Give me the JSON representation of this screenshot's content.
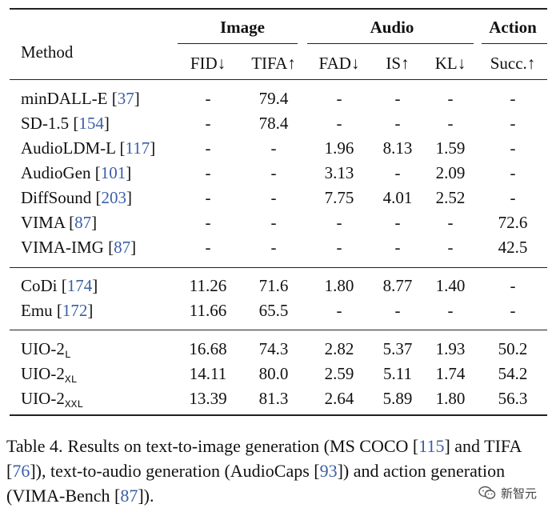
{
  "table": {
    "headers": {
      "method": "Method",
      "groups": {
        "image": "Image",
        "audio": "Audio",
        "action": "Action"
      },
      "cols": {
        "fid": "FID↓",
        "tifa": "TIFA↑",
        "fad": "FAD↓",
        "is": "IS↑",
        "kl": "KL↓",
        "succ": "Succ.↑"
      }
    },
    "rows": [
      {
        "name": "minDALL-E",
        "ref": "37",
        "fid": "-",
        "tifa": "79.4",
        "fad": "-",
        "is": "-",
        "kl": "-",
        "succ": "-"
      },
      {
        "name": "SD-1.5",
        "ref": "154",
        "fid": "-",
        "tifa": "78.4",
        "fad": "-",
        "is": "-",
        "kl": "-",
        "succ": "-"
      },
      {
        "name": "AudioLDM-L",
        "ref": "117",
        "fid": "-",
        "tifa": "-",
        "fad": "1.96",
        "is": "8.13",
        "kl": "1.59",
        "succ": "-"
      },
      {
        "name": "AudioGen",
        "ref": "101",
        "fid": "-",
        "tifa": "-",
        "fad": "3.13",
        "is": "-",
        "kl": "2.09",
        "succ": "-"
      },
      {
        "name": "DiffSound",
        "ref": "203",
        "fid": "-",
        "tifa": "-",
        "fad": "7.75",
        "is": "4.01",
        "kl": "2.52",
        "succ": "-"
      },
      {
        "name": "VIMA",
        "ref": "87",
        "fid": "-",
        "tifa": "-",
        "fad": "-",
        "is": "-",
        "kl": "-",
        "succ": "72.6"
      },
      {
        "name": "VIMA-IMG",
        "ref": "87",
        "fid": "-",
        "tifa": "-",
        "fad": "-",
        "is": "-",
        "kl": "-",
        "succ": "42.5"
      },
      {
        "name": "CoDi",
        "ref": "174",
        "fid": "11.26",
        "tifa": "71.6",
        "fad": "1.80",
        "is": "8.77",
        "kl": "1.40",
        "succ": "-"
      },
      {
        "name": "Emu",
        "ref": "172",
        "fid": "11.66",
        "tifa": "65.5",
        "fad": "-",
        "is": "-",
        "kl": "-",
        "succ": "-"
      },
      {
        "name": "UIO-2",
        "sub": "L",
        "fid": "16.68",
        "tifa": "74.3",
        "fad": "2.82",
        "is": "5.37",
        "kl": "1.93",
        "succ": "50.2"
      },
      {
        "name": "UIO-2",
        "sub": "XL",
        "fid": "14.11",
        "tifa": "80.0",
        "fad": "2.59",
        "is": "5.11",
        "kl": "1.74",
        "succ": "54.2"
      },
      {
        "name": "UIO-2",
        "sub": "XXL",
        "fid": "13.39",
        "tifa": "81.3",
        "fad": "2.64",
        "is": "5.89",
        "kl": "1.80",
        "succ": "56.3"
      }
    ]
  },
  "caption": {
    "label": "Table 4.",
    "part1": "Results on text-to-image generation (MS COCO [",
    "ref1": "115",
    "part2": "] and TIFA [",
    "ref2": "76",
    "part3": "]), text-to-audio generation (AudioCaps [",
    "ref3": "93",
    "part4": "]) and action generation (VIMA-Bench [",
    "ref4": "87",
    "part5": "])."
  },
  "watermark": {
    "text": "新智元",
    "icon": "wechat-icon"
  }
}
